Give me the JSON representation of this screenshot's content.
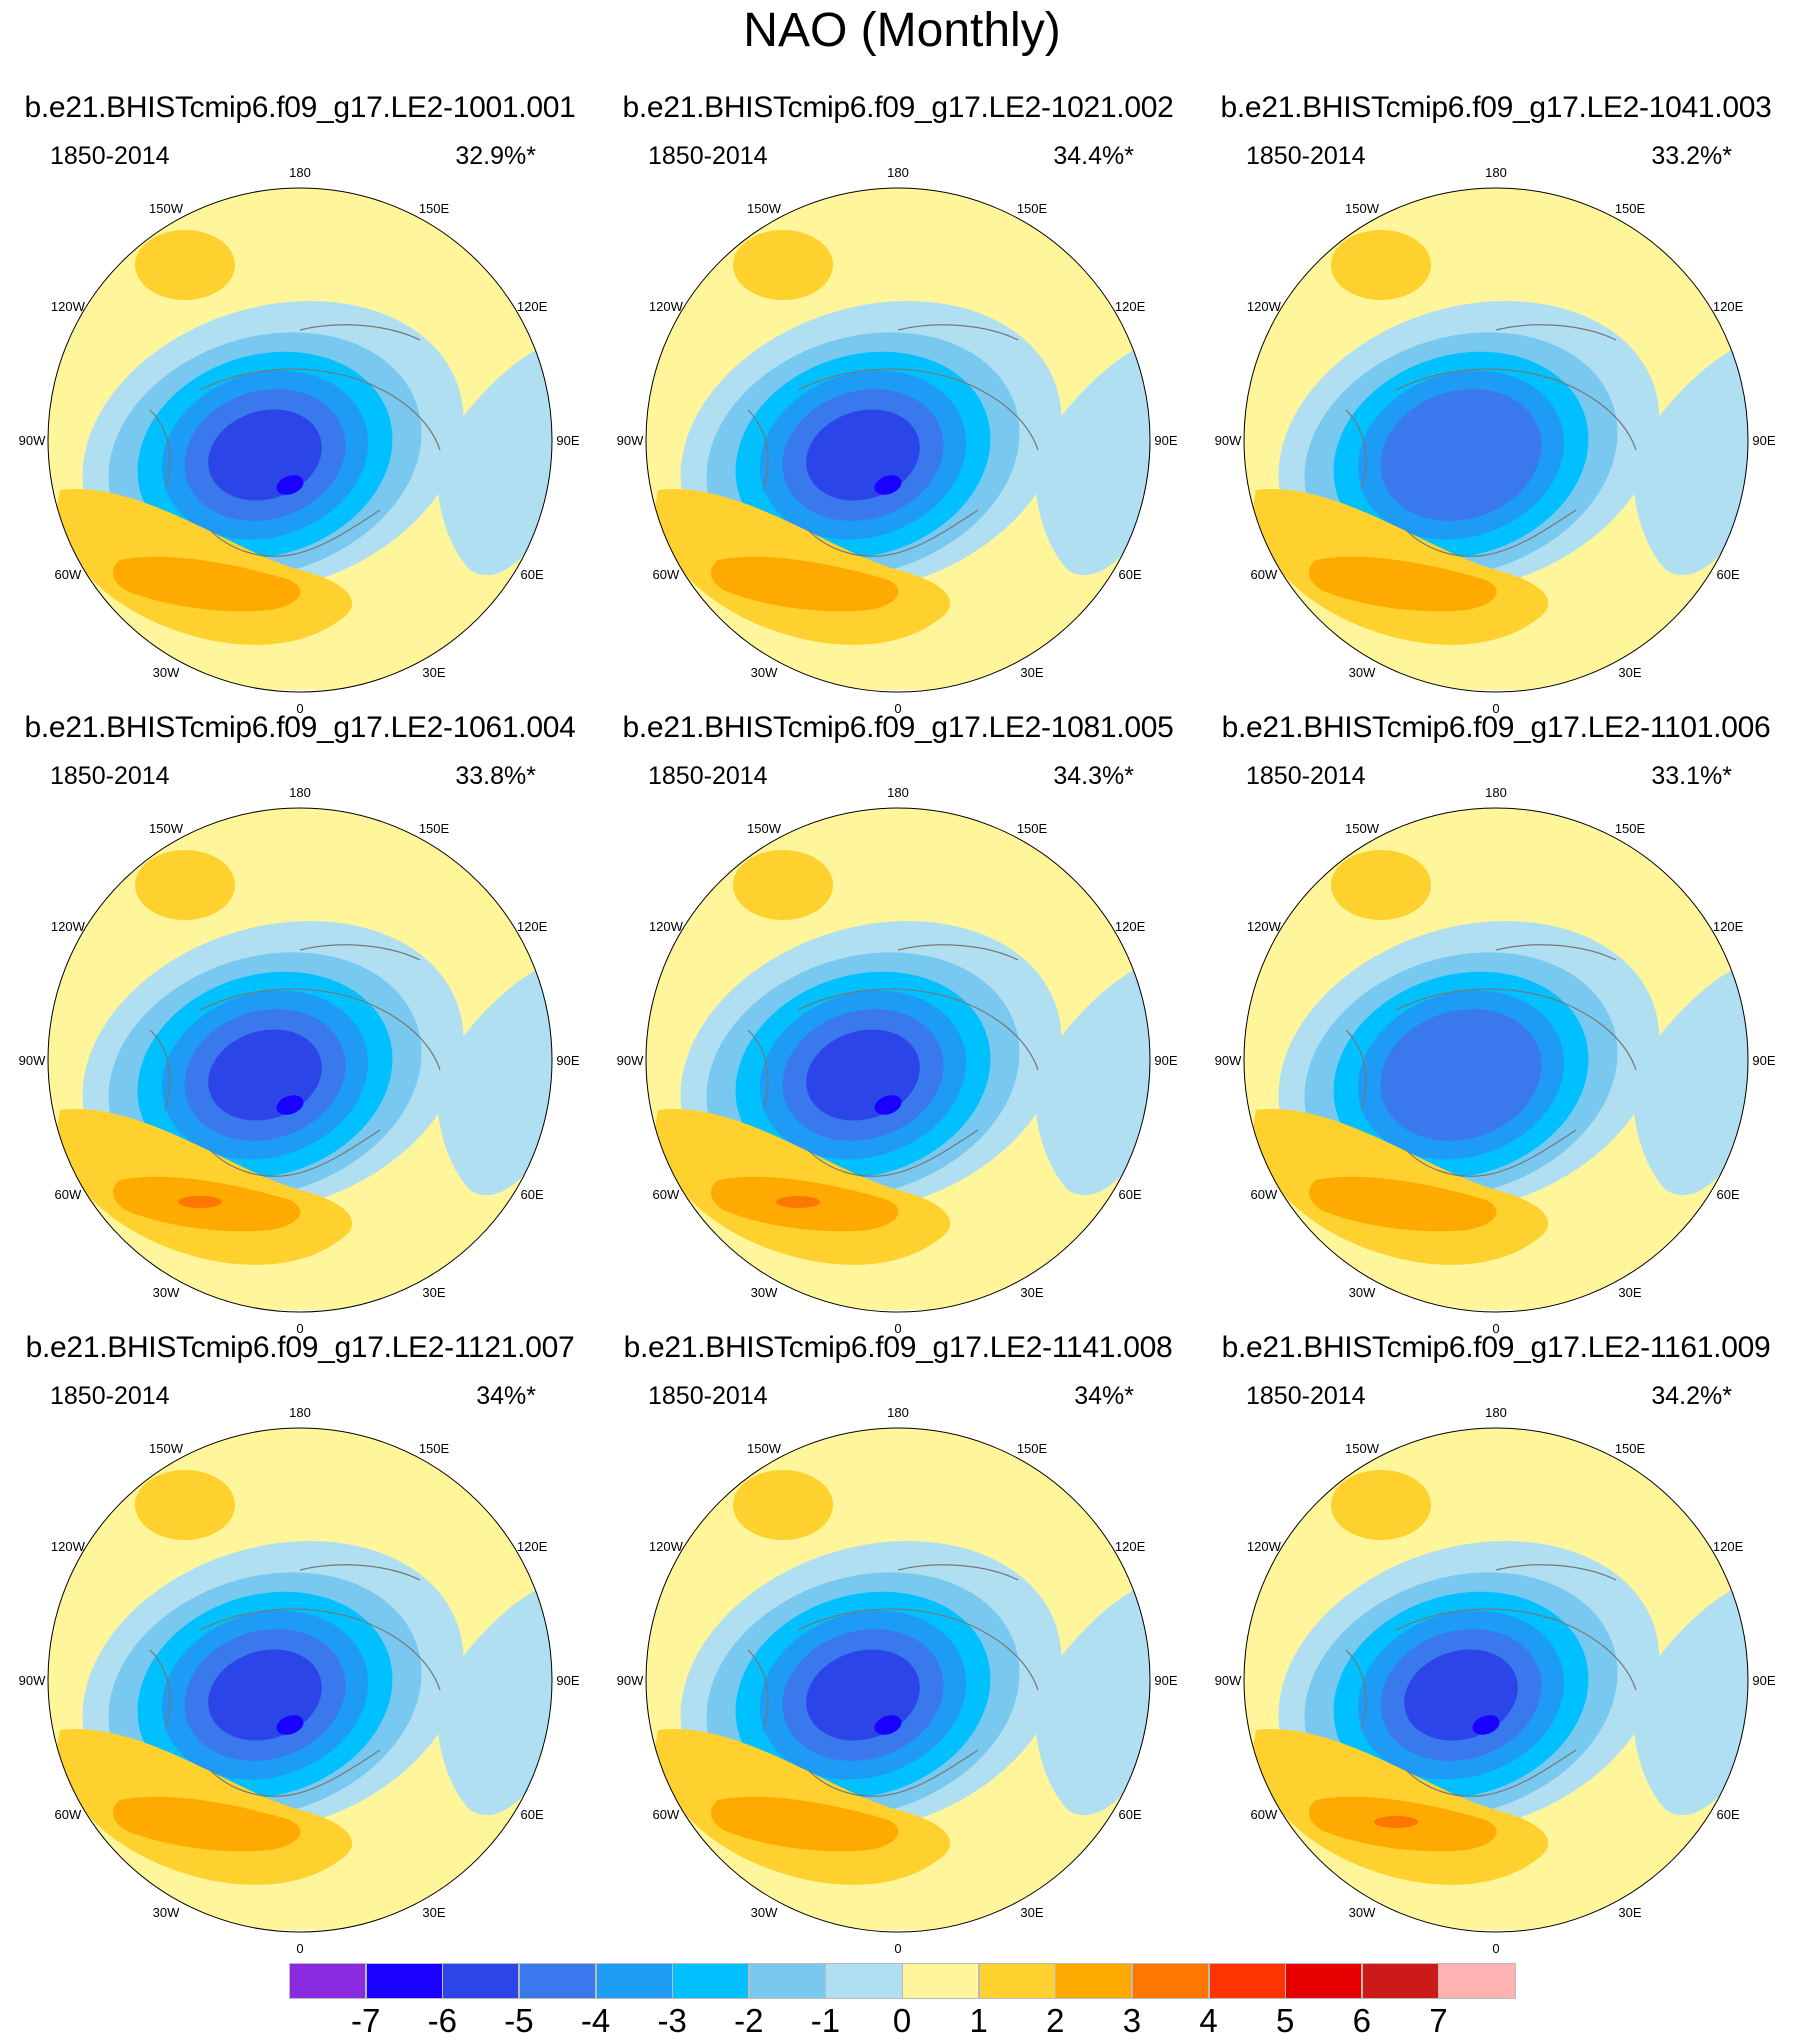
{
  "title": "NAO (Monthly)",
  "chart_data": {
    "type": "contour-map",
    "projection": "north polar stereographic",
    "variable": "NAO pattern (monthly)",
    "period": "1850-2014",
    "longitude_labels": [
      "180",
      "150E",
      "120E",
      "90E",
      "60E",
      "30E",
      "0",
      "30W",
      "60W",
      "90W",
      "120W",
      "150W"
    ],
    "panels": [
      {
        "title": "b.e21.BHISTcmip6.f09_g17.LE2-1001.001",
        "period": "1850-2014",
        "variance_explained": "32.9%*",
        "min_level": -6,
        "max_level": 2
      },
      {
        "title": "b.e21.BHISTcmip6.f09_g17.LE2-1021.002",
        "period": "1850-2014",
        "variance_explained": "34.4%*",
        "min_level": -6,
        "max_level": 2
      },
      {
        "title": "b.e21.BHISTcmip6.f09_g17.LE2-1041.003",
        "period": "1850-2014",
        "variance_explained": "33.2%*",
        "min_level": -5,
        "max_level": 2
      },
      {
        "title": "b.e21.BHISTcmip6.f09_g17.LE2-1061.004",
        "period": "1850-2014",
        "variance_explained": "33.8%*",
        "min_level": -6,
        "max_level": 3
      },
      {
        "title": "b.e21.BHISTcmip6.f09_g17.LE2-1081.005",
        "period": "1850-2014",
        "variance_explained": "34.3%*",
        "min_level": -6,
        "max_level": 3
      },
      {
        "title": "b.e21.BHISTcmip6.f09_g17.LE2-1101.006",
        "period": "1850-2014",
        "variance_explained": "33.1%*",
        "min_level": -5,
        "max_level": 2
      },
      {
        "title": "b.e21.BHISTcmip6.f09_g17.LE2-1121.007",
        "period": "1850-2014",
        "variance_explained": "34%*",
        "min_level": -6,
        "max_level": 2
      },
      {
        "title": "b.e21.BHISTcmip6.f09_g17.LE2-1141.008",
        "period": "1850-2014",
        "variance_explained": "34%*",
        "min_level": -6,
        "max_level": 2
      },
      {
        "title": "b.e21.BHISTcmip6.f09_g17.LE2-1161.009",
        "period": "1850-2014",
        "variance_explained": "34.2%*",
        "min_level": -6,
        "max_level": 3
      }
    ],
    "colorbar": {
      "labels": [
        "-7",
        "-6",
        "-5",
        "-4",
        "-3",
        "-2",
        "-1",
        "0",
        "1",
        "2",
        "3",
        "4",
        "5",
        "6",
        "7"
      ],
      "levels": [
        -7,
        -6,
        -5,
        -4,
        -3,
        -2,
        -1,
        0,
        1,
        2,
        3,
        4,
        5,
        6,
        7
      ],
      "colors": [
        "#8a2be2",
        "#1a00ff",
        "#2b45e8",
        "#3a78ed",
        "#1e9bf5",
        "#00c0ff",
        "#78c8f0",
        "#b0dff2",
        "#fff59a",
        "#ffd12e",
        "#ffaa00",
        "#ff7700",
        "#ff3300",
        "#e60000",
        "#cc1a1a",
        "#ffb2b2"
      ]
    }
  }
}
